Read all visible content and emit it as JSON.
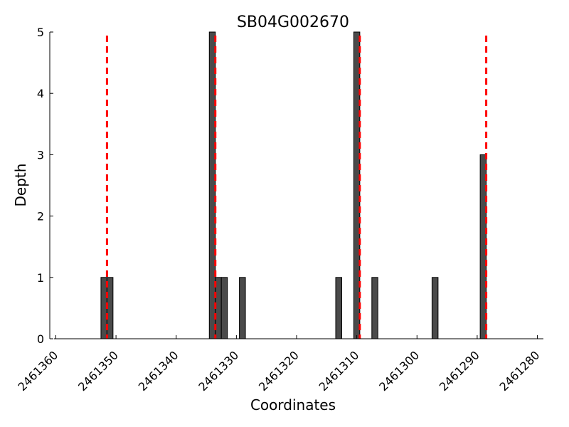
{
  "chart_data": {
    "type": "bar",
    "title": "SB04G002670",
    "xlabel": "Coordinates",
    "ylabel": "Depth",
    "x_reversed": true,
    "xlim": [
      2461361,
      2461279
    ],
    "ylim": [
      0,
      5
    ],
    "x_ticks": [
      2461360,
      2461350,
      2461340,
      2461330,
      2461320,
      2461310,
      2461300,
      2461290,
      2461280
    ],
    "y_ticks": [
      0,
      1,
      2,
      3,
      4,
      5
    ],
    "bar_width": 1,
    "bars": [
      {
        "x": 2461352,
        "value": 1
      },
      {
        "x": 2461351,
        "value": 1
      },
      {
        "x": 2461334,
        "value": 5
      },
      {
        "x": 2461333,
        "value": 1
      },
      {
        "x": 2461332,
        "value": 1
      },
      {
        "x": 2461329,
        "value": 1
      },
      {
        "x": 2461313,
        "value": 1
      },
      {
        "x": 2461310,
        "value": 5
      },
      {
        "x": 2461307,
        "value": 1
      },
      {
        "x": 2461297,
        "value": 1
      },
      {
        "x": 2461289,
        "value": 3
      }
    ],
    "markers": [
      {
        "x": 2461351.5,
        "color": "#ff0000",
        "style": "dashed"
      },
      {
        "x": 2461333.5,
        "color": "#ff0000",
        "style": "dashed"
      },
      {
        "x": 2461309.5,
        "color": "#ff0000",
        "style": "dashed"
      },
      {
        "x": 2461288.5,
        "color": "#ff0000",
        "style": "dashed"
      }
    ],
    "grid": false,
    "colors": {
      "bar": "#4a4a4a",
      "bar_edge": "#000000",
      "marker": "#ff0000"
    }
  }
}
